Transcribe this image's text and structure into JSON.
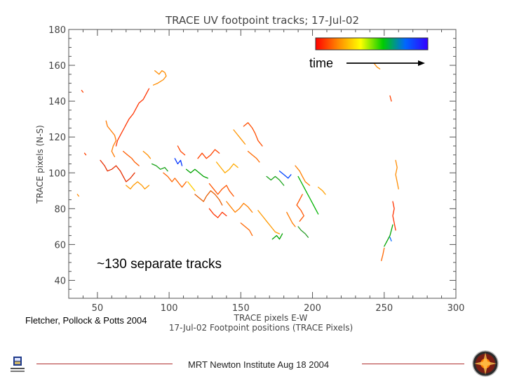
{
  "chart_data": {
    "type": "scatter",
    "title": "TRACE UV footpoint tracks; 17-Jul-02",
    "xlabel": "TRACE pixels E-W",
    "xlabel2": "17-Jul-02 Footpoint positions (TRACE Pixels)",
    "ylabel": "TRACE pixels (N-S)",
    "xlim": [
      30,
      300
    ],
    "ylim": [
      30,
      180
    ],
    "xticks": [
      50,
      100,
      150,
      200,
      250,
      300
    ],
    "yticks": [
      40,
      60,
      80,
      100,
      120,
      140,
      160,
      180
    ],
    "grid": false,
    "colorbar": {
      "label": "time",
      "colors": [
        "#ff0000",
        "#ff8800",
        "#ffff00",
        "#00cc00",
        "#0066ff",
        "#3300ff"
      ]
    },
    "tracks": [
      {
        "color": "#ff8c00",
        "points": [
          [
            90,
            157
          ],
          [
            93,
            155
          ],
          [
            95,
            157
          ],
          [
            97,
            156
          ],
          [
            98,
            154
          ],
          [
            96,
            152
          ],
          [
            92,
            150
          ],
          [
            89,
            149
          ]
        ]
      },
      {
        "color": "#ff3300",
        "points": [
          [
            86,
            147
          ],
          [
            84,
            144
          ],
          [
            82,
            141
          ],
          [
            79,
            139
          ],
          [
            77,
            136
          ],
          [
            75,
            133
          ],
          [
            72,
            130
          ],
          [
            70,
            127
          ],
          [
            68,
            124
          ],
          [
            66,
            121
          ],
          [
            64,
            118
          ],
          [
            63,
            115
          ]
        ]
      },
      {
        "color": "#ff7a00",
        "points": [
          [
            56,
            129
          ],
          [
            57,
            126
          ],
          [
            59,
            124
          ],
          [
            62,
            121
          ],
          [
            63,
            118
          ],
          [
            61,
            115
          ],
          [
            60,
            112
          ],
          [
            62,
            109
          ]
        ]
      },
      {
        "color": "#e62e00",
        "points": [
          [
            52,
            107
          ],
          [
            55,
            104
          ],
          [
            57,
            101
          ],
          [
            60,
            102
          ],
          [
            63,
            104
          ],
          [
            66,
            101
          ],
          [
            68,
            98
          ],
          [
            70,
            95
          ],
          [
            73,
            97
          ],
          [
            76,
            100
          ]
        ]
      },
      {
        "color": "#ff9900",
        "points": [
          [
            70,
            93
          ],
          [
            73,
            91
          ],
          [
            75,
            93
          ],
          [
            78,
            95
          ],
          [
            81,
            93
          ],
          [
            83,
            91
          ],
          [
            86,
            93
          ]
        ]
      },
      {
        "color": "#1aa31a",
        "points": [
          [
            88,
            105
          ],
          [
            91,
            104
          ],
          [
            94,
            102
          ],
          [
            97,
            103
          ],
          [
            99,
            101
          ]
        ]
      },
      {
        "color": "#0033ff",
        "points": [
          [
            104,
            108
          ],
          [
            106,
            105
          ],
          [
            108,
            107
          ],
          [
            109,
            104
          ]
        ]
      },
      {
        "color": "#00a300",
        "points": [
          [
            112,
            102
          ],
          [
            115,
            100
          ],
          [
            118,
            102
          ],
          [
            121,
            100
          ],
          [
            124,
            98
          ],
          [
            127,
            97
          ]
        ]
      },
      {
        "color": "#ff6600",
        "points": [
          [
            96,
            100
          ],
          [
            99,
            98
          ],
          [
            102,
            95
          ],
          [
            104,
            97
          ],
          [
            107,
            94
          ],
          [
            109,
            92
          ],
          [
            112,
            95
          ]
        ]
      },
      {
        "color": "#ff4400",
        "points": [
          [
            120,
            108
          ],
          [
            123,
            111
          ],
          [
            126,
            108
          ],
          [
            129,
            110
          ],
          [
            132,
            113
          ],
          [
            135,
            111
          ]
        ]
      },
      {
        "color": "#ffaa00",
        "points": [
          [
            133,
            106
          ],
          [
            136,
            103
          ],
          [
            139,
            100
          ],
          [
            142,
            102
          ],
          [
            145,
            105
          ],
          [
            148,
            103
          ]
        ]
      },
      {
        "color": "#ff5500",
        "points": [
          [
            128,
            94
          ],
          [
            131,
            91
          ],
          [
            134,
            88
          ],
          [
            137,
            91
          ],
          [
            140,
            93
          ],
          [
            142,
            90
          ],
          [
            145,
            87
          ]
        ]
      },
      {
        "color": "#e65c00",
        "points": [
          [
            118,
            88
          ],
          [
            121,
            86
          ],
          [
            124,
            84
          ],
          [
            126,
            87
          ],
          [
            129,
            90
          ],
          [
            132,
            88
          ],
          [
            135,
            85
          ],
          [
            137,
            82
          ]
        ]
      },
      {
        "color": "#ff8000",
        "points": [
          [
            140,
            84
          ],
          [
            143,
            81
          ],
          [
            146,
            78
          ],
          [
            149,
            80
          ],
          [
            152,
            83
          ],
          [
            155,
            81
          ],
          [
            158,
            78
          ]
        ]
      },
      {
        "color": "#ff3300",
        "points": [
          [
            128,
            80
          ],
          [
            131,
            77
          ],
          [
            134,
            75
          ],
          [
            137,
            78
          ],
          [
            140,
            76
          ]
        ]
      },
      {
        "color": "#ff9500",
        "points": [
          [
            145,
            124
          ],
          [
            147,
            122
          ],
          [
            149,
            120
          ],
          [
            151,
            118
          ],
          [
            153,
            116
          ]
        ]
      },
      {
        "color": "#ff6a00",
        "points": [
          [
            155,
            112
          ],
          [
            158,
            110
          ],
          [
            161,
            108
          ],
          [
            163,
            106
          ]
        ]
      },
      {
        "color": "#ff4d00",
        "points": [
          [
            152,
            126
          ],
          [
            155,
            128
          ],
          [
            158,
            125
          ],
          [
            160,
            122
          ],
          [
            162,
            118
          ],
          [
            165,
            115
          ]
        ]
      },
      {
        "color": "#1aa31a",
        "points": [
          [
            168,
            98
          ],
          [
            171,
            96
          ],
          [
            174,
            98
          ],
          [
            177,
            96
          ],
          [
            180,
            93
          ]
        ]
      },
      {
        "color": "#0044ff",
        "points": [
          [
            177,
            101
          ],
          [
            180,
            99
          ],
          [
            183,
            97
          ],
          [
            185,
            99
          ]
        ]
      },
      {
        "color": "#ff7f00",
        "points": [
          [
            188,
            104
          ],
          [
            191,
            101
          ],
          [
            193,
            98
          ],
          [
            195,
            95
          ],
          [
            198,
            93
          ]
        ]
      },
      {
        "color": "#00b300",
        "points": [
          [
            190,
            98
          ],
          [
            192,
            95
          ],
          [
            194,
            92
          ],
          [
            196,
            89
          ],
          [
            198,
            86
          ],
          [
            200,
            83
          ],
          [
            202,
            80
          ],
          [
            204,
            77
          ]
        ]
      },
      {
        "color": "#ffa000",
        "points": [
          [
            204,
            92
          ],
          [
            207,
            90
          ],
          [
            209,
            88
          ]
        ]
      },
      {
        "color": "#ff5500",
        "points": [
          [
            193,
            88
          ],
          [
            191,
            85
          ],
          [
            189,
            82
          ],
          [
            192,
            79
          ],
          [
            194,
            76
          ],
          [
            191,
            73
          ]
        ]
      },
      {
        "color": "#2a9d2a",
        "points": [
          [
            190,
            70
          ],
          [
            192,
            68
          ],
          [
            195,
            66
          ],
          [
            197,
            64
          ]
        ]
      },
      {
        "color": "#ff7a00",
        "points": [
          [
            182,
            78
          ],
          [
            184,
            75
          ],
          [
            186,
            72
          ],
          [
            188,
            70
          ]
        ]
      },
      {
        "color": "#ff9900",
        "points": [
          [
            162,
            79
          ],
          [
            165,
            76
          ],
          [
            168,
            73
          ],
          [
            171,
            70
          ],
          [
            174,
            67
          ],
          [
            177,
            66
          ]
        ]
      },
      {
        "color": "#ff6600",
        "points": [
          [
            150,
            72
          ],
          [
            153,
            70
          ],
          [
            156,
            68
          ],
          [
            158,
            65
          ]
        ]
      },
      {
        "color": "#00a300",
        "points": [
          [
            172,
            63
          ],
          [
            175,
            65
          ],
          [
            177,
            63
          ],
          [
            179,
            66
          ]
        ]
      },
      {
        "color": "#ffcc00",
        "points": [
          [
            113,
            95
          ],
          [
            116,
            92
          ],
          [
            118,
            90
          ]
        ]
      },
      {
        "color": "#ff5c00",
        "points": [
          [
            68,
            112
          ],
          [
            71,
            110
          ],
          [
            74,
            108
          ],
          [
            76,
            106
          ],
          [
            79,
            104
          ]
        ]
      },
      {
        "color": "#ff8f00",
        "points": [
          [
            82,
            112
          ],
          [
            85,
            110
          ],
          [
            87,
            108
          ]
        ]
      },
      {
        "color": "#ff4400",
        "points": [
          [
            106,
            115
          ],
          [
            108,
            112
          ],
          [
            111,
            110
          ]
        ]
      },
      {
        "color": "#ff8c00",
        "points": [
          [
            258,
            107
          ],
          [
            259,
            103
          ],
          [
            258,
            99
          ],
          [
            259,
            95
          ],
          [
            260,
            91
          ]
        ]
      },
      {
        "color": "#ff3300",
        "points": [
          [
            256,
            84
          ],
          [
            257,
            80
          ],
          [
            256,
            76
          ],
          [
            257,
            72
          ],
          [
            258,
            68
          ]
        ]
      },
      {
        "color": "#00a300",
        "points": [
          [
            256,
            71
          ],
          [
            255,
            68
          ],
          [
            254,
            65
          ],
          [
            252,
            62
          ],
          [
            250,
            59
          ]
        ]
      },
      {
        "color": "#0066ff",
        "points": [
          [
            254,
            64
          ],
          [
            255,
            62
          ]
        ]
      },
      {
        "color": "#ff6600",
        "points": [
          [
            250,
            58
          ],
          [
            249,
            54
          ],
          [
            248,
            51
          ]
        ]
      },
      {
        "color": "#ff8c00",
        "points": [
          [
            243,
            161
          ],
          [
            245,
            159
          ],
          [
            247,
            158
          ]
        ]
      },
      {
        "color": "#ff4000",
        "points": [
          [
            254,
            143
          ],
          [
            255,
            140
          ]
        ]
      },
      {
        "color": "#ff4000",
        "points": [
          [
            39,
            146
          ],
          [
            40,
            145
          ]
        ]
      },
      {
        "color": "#ff4000",
        "points": [
          [
            41,
            111
          ],
          [
            42,
            110
          ]
        ]
      },
      {
        "color": "#ff8800",
        "points": [
          [
            36,
            88
          ],
          [
            37,
            87
          ]
        ]
      }
    ]
  },
  "annotations": {
    "tracks_count": "~130 separate tracks",
    "credit": "Fletcher, Pollock & Potts 2004",
    "time_label": "time"
  },
  "footer": {
    "text": "MRT Newton Institute Aug 18 2004"
  },
  "icons": {
    "left_logo": "university-logo-icon",
    "right_logo": "mission-patch-icon"
  }
}
